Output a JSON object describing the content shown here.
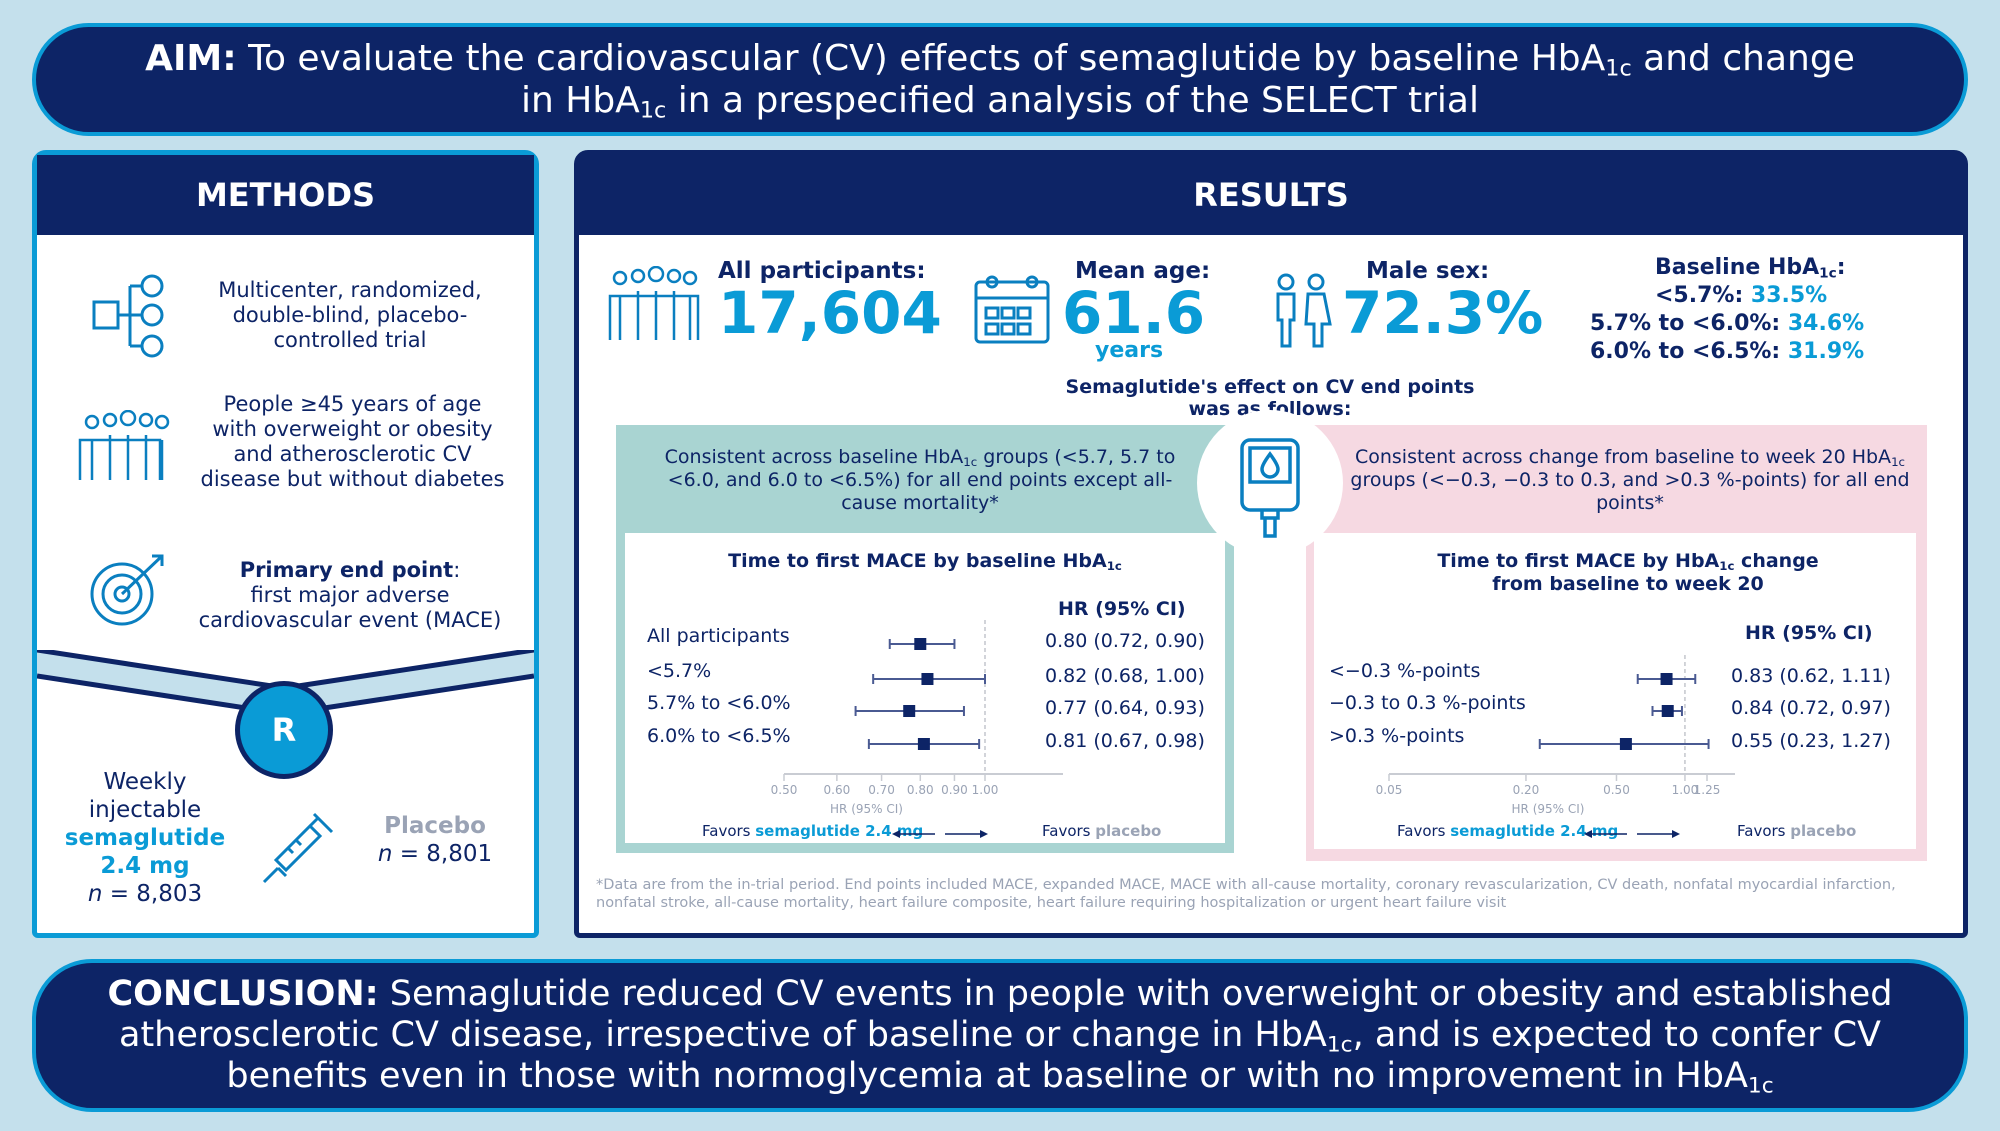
{
  "aim": {
    "label": "AIM:",
    "t1": " To evaluate the cardiovascular (CV) effects of semaglutide by baseline HbA",
    "sub": "1c",
    "t2": " and change in HbA",
    "t3": " in a prespecified analysis of the SELECT trial"
  },
  "methods": {
    "title": "METHODS",
    "design": "Multicenter, randomized, double-blind, placebo-controlled trial",
    "population": "People ≥45 years of age with overweight or obesity and atherosclerotic CV disease but without diabetes",
    "endpoint_label": "Primary end point",
    "endpoint_colon": ":",
    "endpoint_text": "first major adverse cardiovascular event (MACE)",
    "randomization": "R",
    "arm1": {
      "l1": "Weekly",
      "l2": "injectable",
      "drug": "semaglutide 2.4 mg",
      "n_label": "n",
      "n_value": " = 8,803"
    },
    "arm2": {
      "name": "Placebo",
      "n_label": "n",
      "n_value": " = 8,801"
    }
  },
  "results": {
    "title": "RESULTS",
    "participants": {
      "label": "All participants:",
      "value": "17,604"
    },
    "age": {
      "label": "Mean age:",
      "value": "61.6",
      "unit": "years"
    },
    "male": {
      "label": "Male sex:",
      "value": "72.3%"
    },
    "baseline": {
      "label": "Baseline HbA",
      "sub": "1c",
      "colon": ":",
      "items": [
        {
          "range": "<5.7%: ",
          "pct": "33.5%"
        },
        {
          "range": "5.7% to <6.0%: ",
          "pct": "34.6%"
        },
        {
          "range": "6.0% to <6.5%: ",
          "pct": "31.9%"
        }
      ]
    },
    "effect_title": "Semaglutide's effect on CV end points was as follows:",
    "left_summary": {
      "a": "Consistent across baseline HbA",
      "sub": "1c",
      "b": " groups (<5.7, 5.7 to <6.0, and 6.0 to <6.5%) for all end points except all-cause mortality*"
    },
    "right_summary": {
      "a": "Consistent across change from baseline to week 20 HbA",
      "sub": "1c",
      "b": " groups (<−0.3, −0.3 to 0.3, and >0.3 %-points) for all end points*"
    },
    "footnote": "*Data are from the in-trial period. End points included MACE, expanded MACE, MACE with all-cause mortality, coronary revascularization, CV death, nonfatal myocardial infarction, nonfatal stroke, all-cause mortality, heart failure composite, heart failure requiring hospitalization or urgent heart failure visit"
  },
  "chart_data": [
    {
      "type": "forest",
      "title": "Time to first MACE by baseline HbA",
      "title_sub": "1c",
      "column_header": "HR (95% CI)",
      "xlabel": "HR (95% CI)",
      "scale": "log",
      "xlim": [
        0.5,
        1.0
      ],
      "ref_line": 1.0,
      "ticks": [
        "0.50",
        "0.60",
        "0.70",
        "0.80",
        "0.90",
        "1.00"
      ],
      "rows": [
        {
          "label": "All participants",
          "hr": 0.8,
          "lo": 0.72,
          "hi": 0.9,
          "text": "0.80 (0.72, 0.90)"
        },
        {
          "label": "<5.7%",
          "hr": 0.82,
          "lo": 0.68,
          "hi": 1.0,
          "text": "0.82 (0.68, 1.00)"
        },
        {
          "label": "5.7% to <6.0%",
          "hr": 0.77,
          "lo": 0.64,
          "hi": 0.93,
          "text": "0.77 (0.64, 0.93)"
        },
        {
          "label": "6.0% to <6.5%",
          "hr": 0.81,
          "lo": 0.67,
          "hi": 0.98,
          "text": "0.81 (0.67, 0.98)"
        }
      ],
      "favors_left": "Favors ",
      "favors_left_drug": "semaglutide 2.4 mg",
      "favors_right": "Favors ",
      "favors_right_drug": "placebo"
    },
    {
      "type": "forest",
      "title": "Time to first MACE by HbA",
      "title_sub": "1c",
      "title_b": " change from baseline to week 20",
      "column_header": "HR (95% CI)",
      "xlabel": "HR (95% CI)",
      "scale": "log",
      "xlim": [
        0.05,
        1.25
      ],
      "ref_line": 1.0,
      "ticks": [
        "0.05",
        "0.20",
        "0.50",
        "1.00",
        "1.25"
      ],
      "rows": [
        {
          "label": "<−0.3 %-points",
          "hr": 0.83,
          "lo": 0.62,
          "hi": 1.11,
          "text": "0.83 (0.62, 1.11)"
        },
        {
          "label": "−0.3 to 0.3 %-points",
          "hr": 0.84,
          "lo": 0.72,
          "hi": 0.97,
          "text": "0.84 (0.72, 0.97)"
        },
        {
          "label": ">0.3 %-points",
          "hr": 0.55,
          "lo": 0.23,
          "hi": 1.27,
          "text": "0.55 (0.23, 1.27)"
        }
      ],
      "favors_left": "Favors ",
      "favors_left_drug": "semaglutide 2.4 mg",
      "favors_right": "Favors ",
      "favors_right_drug": "placebo"
    }
  ],
  "conclusion": {
    "label": "CONCLUSION:",
    "t1": " Semaglutide reduced CV events in people with overweight or obesity and established atherosclerotic CV disease, irrespective of baseline or change in HbA",
    "sub": "1c",
    "t2": ", and is expected to confer CV benefits even in those with normoglycemia at baseline or with no improvement in HbA"
  },
  "colors": {
    "navy": "#0d2466",
    "cyan": "#0a9bd6",
    "teal": "#a9d4d2",
    "pink": "#f6d9e2",
    "background": "#c4e0ec"
  }
}
